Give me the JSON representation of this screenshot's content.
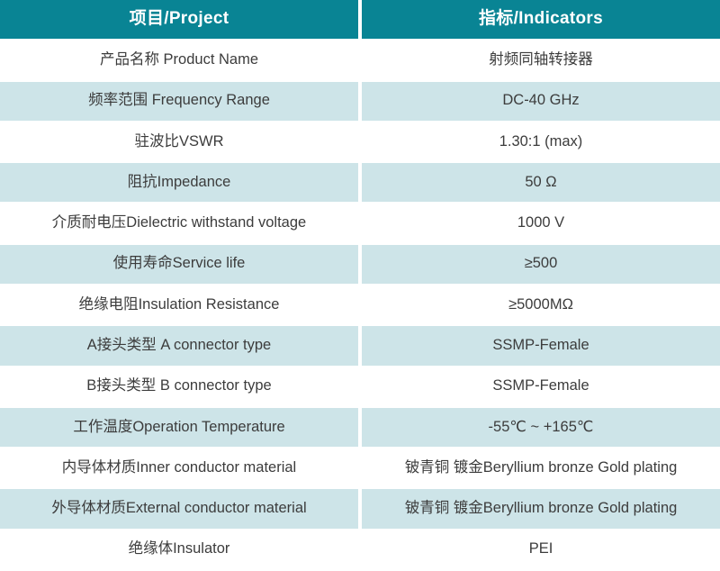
{
  "table": {
    "headers": [
      {
        "label": "项目/Project"
      },
      {
        "label": "指标/Indicators"
      }
    ],
    "rows": [
      {
        "project": "产品名称 Product Name",
        "indicator": "射频同轴转接器"
      },
      {
        "project": "频率范围 Frequency Range",
        "indicator": "DC-40 GHz"
      },
      {
        "project": "驻波比VSWR",
        "indicator": "1.30:1 (max)"
      },
      {
        "project": "阻抗Impedance",
        "indicator": "50 Ω"
      },
      {
        "project": "介质耐电压Dielectric withstand voltage",
        "indicator": "1000 V"
      },
      {
        "project": "使用寿命Service life",
        "indicator": "≥500"
      },
      {
        "project": "绝缘电阻Insulation Resistance",
        "indicator": "≥5000MΩ"
      },
      {
        "project": "A接头类型 A connector type",
        "indicator": "SSMP-Female"
      },
      {
        "project": "B接头类型 B connector type",
        "indicator": "SSMP-Female"
      },
      {
        "project": "工作温度Operation Temperature",
        "indicator": "-55℃ ~ +165℃"
      },
      {
        "project": "内导体材质Inner conductor material",
        "indicator": "铍青铜 镀金Beryllium bronze Gold plating"
      },
      {
        "project": "外导体材质External conductor material",
        "indicator": "铍青铜 镀金Beryllium bronze Gold plating"
      },
      {
        "project": "绝缘体Insulator",
        "indicator": "PEI"
      }
    ],
    "colors": {
      "header_bg": "#098494",
      "header_text": "#ffffff",
      "alt_row_bg": "#cde4e8",
      "row_bg": "#ffffff",
      "text": "#3c3c3c"
    }
  }
}
